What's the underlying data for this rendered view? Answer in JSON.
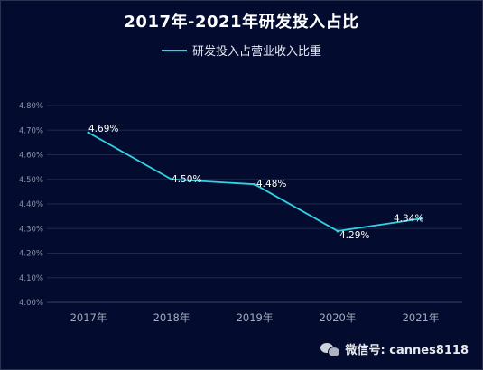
{
  "chart_data": {
    "type": "line",
    "title": "2017年-2021年研发投入占比",
    "categories": [
      "2017年",
      "2018年",
      "2019年",
      "2020年",
      "2021年"
    ],
    "series": [
      {
        "name": "研发投入占营业收入比重",
        "values": [
          4.69,
          4.5,
          4.48,
          4.29,
          4.34
        ],
        "labels": [
          "4.69%",
          "4.50%",
          "4.48%",
          "4.29%",
          "4.34%"
        ]
      }
    ],
    "yticks": [
      "4.00%",
      "4.10%",
      "4.20%",
      "4.30%",
      "4.40%",
      "4.50%",
      "4.60%",
      "4.70%",
      "4.80%"
    ],
    "ylim": [
      4.0,
      4.8
    ],
    "grid": true,
    "legend": "top-center",
    "colors": {
      "line": "#2fd4e4",
      "grid": "#1c2a4d",
      "axis_text": "#8c93a8"
    }
  },
  "watermark": {
    "text": "微信号: cannes8118",
    "icon": "wechat-icon"
  }
}
